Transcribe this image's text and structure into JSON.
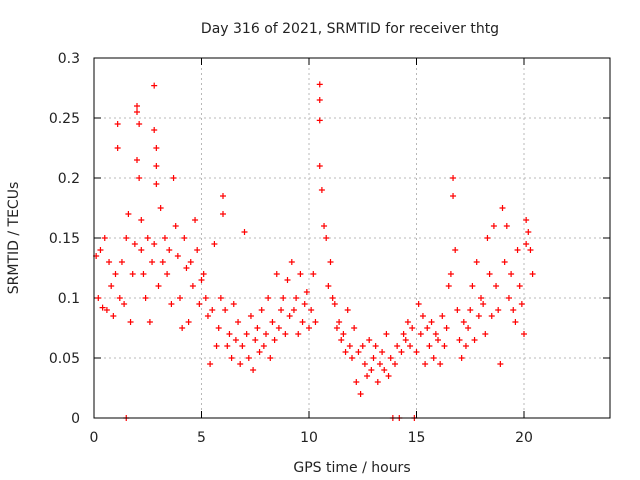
{
  "chart_data": {
    "type": "scatter",
    "title": "Day 316 of 2021, SRMTID for receiver thtg",
    "xlabel": "GPS time / hours",
    "ylabel": "SRMTID / TECUs",
    "xlim": [
      0,
      24
    ],
    "ylim": [
      0,
      0.3
    ],
    "xticks": [
      0,
      5,
      10,
      15,
      20
    ],
    "yticks": [
      0,
      0.05,
      0.1,
      0.15,
      0.2,
      0.25,
      0.3
    ],
    "xtick_labels": [
      "0",
      "5",
      "10",
      "15",
      "20"
    ],
    "ytick_labels": [
      "0",
      "0.05",
      "0.1",
      "0.15",
      "0.2",
      "0.25",
      "0.3"
    ],
    "grid": true,
    "marker": "plus",
    "series": [
      {
        "name": "SRMTID thtg",
        "color": "#ff0000",
        "points": [
          [
            0.1,
            0.135
          ],
          [
            0.2,
            0.1
          ],
          [
            0.3,
            0.14
          ],
          [
            0.4,
            0.092
          ],
          [
            0.5,
            0.15
          ],
          [
            0.6,
            0.09
          ],
          [
            0.7,
            0.13
          ],
          [
            0.8,
            0.11
          ],
          [
            0.9,
            0.085
          ],
          [
            1.0,
            0.12
          ],
          [
            1.1,
            0.245
          ],
          [
            1.1,
            0.225
          ],
          [
            1.2,
            0.1
          ],
          [
            1.3,
            0.13
          ],
          [
            1.4,
            0.095
          ],
          [
            1.5,
            0.15
          ],
          [
            1.6,
            0.17
          ],
          [
            1.7,
            0.08
          ],
          [
            1.8,
            0.12
          ],
          [
            1.9,
            0.145
          ],
          [
            1.5,
            0.0
          ],
          [
            2.0,
            0.26
          ],
          [
            2.0,
            0.255
          ],
          [
            2.1,
            0.245
          ],
          [
            2.0,
            0.215
          ],
          [
            2.1,
            0.2
          ],
          [
            2.2,
            0.165
          ],
          [
            2.2,
            0.14
          ],
          [
            2.3,
            0.12
          ],
          [
            2.4,
            0.1
          ],
          [
            2.5,
            0.15
          ],
          [
            2.6,
            0.08
          ],
          [
            2.7,
            0.13
          ],
          [
            2.8,
            0.145
          ],
          [
            2.8,
            0.277
          ],
          [
            2.8,
            0.24
          ],
          [
            2.9,
            0.225
          ],
          [
            2.9,
            0.21
          ],
          [
            2.9,
            0.195
          ],
          [
            3.0,
            0.11
          ],
          [
            3.1,
            0.175
          ],
          [
            3.2,
            0.13
          ],
          [
            3.3,
            0.15
          ],
          [
            3.4,
            0.12
          ],
          [
            3.5,
            0.14
          ],
          [
            3.6,
            0.095
          ],
          [
            3.7,
            0.2
          ],
          [
            3.8,
            0.16
          ],
          [
            3.9,
            0.135
          ],
          [
            4.0,
            0.1
          ],
          [
            4.1,
            0.075
          ],
          [
            4.2,
            0.15
          ],
          [
            4.3,
            0.125
          ],
          [
            4.4,
            0.08
          ],
          [
            4.5,
            0.13
          ],
          [
            4.6,
            0.11
          ],
          [
            4.7,
            0.165
          ],
          [
            4.8,
            0.14
          ],
          [
            4.9,
            0.095
          ],
          [
            5.0,
            0.115
          ],
          [
            5.1,
            0.12
          ],
          [
            5.2,
            0.1
          ],
          [
            5.3,
            0.085
          ],
          [
            5.4,
            0.045
          ],
          [
            5.5,
            0.09
          ],
          [
            5.6,
            0.145
          ],
          [
            5.7,
            0.06
          ],
          [
            5.8,
            0.075
          ],
          [
            5.9,
            0.1
          ],
          [
            6.0,
            0.185
          ],
          [
            6.0,
            0.17
          ],
          [
            6.1,
            0.09
          ],
          [
            6.2,
            0.06
          ],
          [
            6.3,
            0.07
          ],
          [
            6.4,
            0.05
          ],
          [
            6.5,
            0.095
          ],
          [
            6.6,
            0.065
          ],
          [
            6.7,
            0.08
          ],
          [
            6.8,
            0.045
          ],
          [
            6.9,
            0.06
          ],
          [
            7.0,
            0.155
          ],
          [
            7.1,
            0.07
          ],
          [
            7.2,
            0.05
          ],
          [
            7.3,
            0.085
          ],
          [
            7.4,
            0.04
          ],
          [
            7.5,
            0.065
          ],
          [
            7.6,
            0.075
          ],
          [
            7.7,
            0.055
          ],
          [
            7.8,
            0.09
          ],
          [
            7.9,
            0.06
          ],
          [
            8.0,
            0.07
          ],
          [
            8.1,
            0.1
          ],
          [
            8.2,
            0.05
          ],
          [
            8.3,
            0.08
          ],
          [
            8.4,
            0.065
          ],
          [
            8.5,
            0.12
          ],
          [
            8.6,
            0.075
          ],
          [
            8.7,
            0.09
          ],
          [
            8.8,
            0.1
          ],
          [
            8.9,
            0.07
          ],
          [
            9.0,
            0.115
          ],
          [
            9.1,
            0.085
          ],
          [
            9.2,
            0.13
          ],
          [
            9.3,
            0.09
          ],
          [
            9.4,
            0.1
          ],
          [
            9.5,
            0.07
          ],
          [
            9.6,
            0.12
          ],
          [
            9.7,
            0.08
          ],
          [
            9.8,
            0.095
          ],
          [
            9.9,
            0.105
          ],
          [
            10.0,
            0.075
          ],
          [
            10.1,
            0.09
          ],
          [
            10.2,
            0.12
          ],
          [
            10.3,
            0.08
          ],
          [
            10.5,
            0.278
          ],
          [
            10.5,
            0.265
          ],
          [
            10.5,
            0.248
          ],
          [
            10.5,
            0.21
          ],
          [
            10.6,
            0.19
          ],
          [
            10.7,
            0.16
          ],
          [
            10.8,
            0.15
          ],
          [
            10.9,
            0.11
          ],
          [
            11.0,
            0.13
          ],
          [
            11.1,
            0.1
          ],
          [
            11.2,
            0.095
          ],
          [
            11.3,
            0.075
          ],
          [
            11.4,
            0.08
          ],
          [
            11.5,
            0.065
          ],
          [
            11.6,
            0.07
          ],
          [
            11.7,
            0.055
          ],
          [
            11.8,
            0.09
          ],
          [
            11.9,
            0.06
          ],
          [
            12.0,
            0.05
          ],
          [
            12.1,
            0.075
          ],
          [
            12.2,
            0.03
          ],
          [
            12.3,
            0.055
          ],
          [
            12.4,
            0.02
          ],
          [
            12.5,
            0.06
          ],
          [
            12.6,
            0.045
          ],
          [
            12.7,
            0.035
          ],
          [
            12.8,
            0.065
          ],
          [
            12.9,
            0.04
          ],
          [
            13.0,
            0.05
          ],
          [
            13.1,
            0.06
          ],
          [
            13.2,
            0.03
          ],
          [
            13.3,
            0.045
          ],
          [
            13.4,
            0.055
          ],
          [
            13.5,
            0.04
          ],
          [
            13.6,
            0.07
          ],
          [
            13.7,
            0.035
          ],
          [
            13.8,
            0.05
          ],
          [
            13.9,
            0.0
          ],
          [
            14.0,
            0.045
          ],
          [
            14.1,
            0.06
          ],
          [
            14.2,
            0.0
          ],
          [
            14.3,
            0.055
          ],
          [
            14.4,
            0.07
          ],
          [
            14.5,
            0.065
          ],
          [
            14.6,
            0.08
          ],
          [
            14.7,
            0.06
          ],
          [
            14.8,
            0.075
          ],
          [
            14.9,
            0.0
          ],
          [
            15.0,
            0.055
          ],
          [
            15.1,
            0.095
          ],
          [
            15.2,
            0.07
          ],
          [
            15.3,
            0.085
          ],
          [
            15.4,
            0.045
          ],
          [
            15.5,
            0.075
          ],
          [
            15.6,
            0.06
          ],
          [
            15.7,
            0.08
          ],
          [
            15.8,
            0.05
          ],
          [
            15.9,
            0.07
          ],
          [
            16.0,
            0.065
          ],
          [
            16.1,
            0.045
          ],
          [
            16.2,
            0.085
          ],
          [
            16.3,
            0.06
          ],
          [
            16.4,
            0.075
          ],
          [
            16.5,
            0.11
          ],
          [
            16.6,
            0.12
          ],
          [
            16.7,
            0.2
          ],
          [
            16.7,
            0.185
          ],
          [
            16.8,
            0.14
          ],
          [
            16.9,
            0.09
          ],
          [
            17.0,
            0.065
          ],
          [
            17.1,
            0.05
          ],
          [
            17.2,
            0.08
          ],
          [
            17.3,
            0.06
          ],
          [
            17.4,
            0.075
          ],
          [
            17.5,
            0.09
          ],
          [
            17.6,
            0.11
          ],
          [
            17.7,
            0.065
          ],
          [
            17.8,
            0.13
          ],
          [
            17.9,
            0.085
          ],
          [
            18.0,
            0.1
          ],
          [
            18.1,
            0.095
          ],
          [
            18.2,
            0.07
          ],
          [
            18.3,
            0.15
          ],
          [
            18.4,
            0.12
          ],
          [
            18.5,
            0.085
          ],
          [
            18.6,
            0.16
          ],
          [
            18.7,
            0.11
          ],
          [
            18.8,
            0.09
          ],
          [
            18.9,
            0.045
          ],
          [
            19.0,
            0.175
          ],
          [
            19.1,
            0.13
          ],
          [
            19.2,
            0.16
          ],
          [
            19.3,
            0.1
          ],
          [
            19.4,
            0.12
          ],
          [
            19.5,
            0.09
          ],
          [
            19.6,
            0.08
          ],
          [
            19.7,
            0.14
          ],
          [
            19.8,
            0.11
          ],
          [
            19.9,
            0.095
          ],
          [
            20.0,
            0.07
          ],
          [
            20.1,
            0.165
          ],
          [
            20.1,
            0.145
          ],
          [
            20.2,
            0.155
          ],
          [
            20.3,
            0.14
          ],
          [
            20.4,
            0.12
          ]
        ]
      }
    ]
  }
}
